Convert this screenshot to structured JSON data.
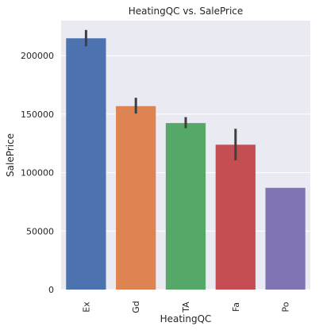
{
  "chart_data": {
    "type": "bar",
    "title": "HeatingQC vs. SalePrice",
    "xlabel": "HeatingQC",
    "ylabel": "SalePrice",
    "categories": [
      "Ex",
      "Gd",
      "TA",
      "Fa",
      "Po"
    ],
    "values": [
      214900,
      156900,
      142400,
      123900,
      87000
    ],
    "error_bars": [
      [
        208000,
        222000
      ],
      [
        150500,
        164000
      ],
      [
        138000,
        147500
      ],
      [
        110500,
        137500
      ],
      null
    ],
    "colors": [
      "#4c72b0",
      "#dd8452",
      "#55a868",
      "#c44e52",
      "#8172b3"
    ],
    "errorbar_color": "#3f3f3f",
    "ylim": [
      0,
      230000
    ],
    "yticks": [
      0,
      50000,
      100000,
      150000,
      200000
    ],
    "ytick_labels": [
      "0",
      "50000",
      "100000",
      "150000",
      "200000"
    ],
    "grid": true,
    "background": "#eaeaf2",
    "grid_color": "#ffffff",
    "tick_rotation": 90
  }
}
